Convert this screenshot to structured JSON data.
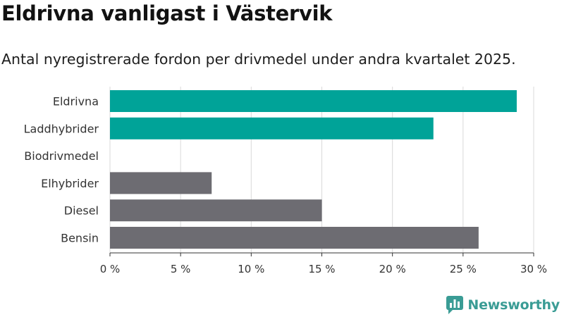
{
  "title": "Eldrivna vanligast i Västervik",
  "subtitle": "Antal nyregistrerade fordon per drivmedel under andra kvartalet 2025.",
  "logo_text": "Newsworthy",
  "colors": {
    "highlight": "#00a398",
    "default": "#6d6c72",
    "grid": "#d9d9d9",
    "axis": "#333333"
  },
  "chart_data": {
    "type": "bar",
    "orientation": "horizontal",
    "title": "Eldrivna vanligast i Västervik",
    "subtitle": "Antal nyregistrerade fordon per drivmedel under andra kvartalet 2025.",
    "categories": [
      "Eldrivna",
      "Laddhybrider",
      "Biodrivmedel",
      "Elhybrider",
      "Diesel",
      "Bensin"
    ],
    "values": [
      28.8,
      22.9,
      0,
      7.2,
      15.0,
      26.1
    ],
    "bar_colors": [
      "#00a398",
      "#00a398",
      "#00a398",
      "#6d6c72",
      "#6d6c72",
      "#6d6c72"
    ],
    "xlim": [
      0,
      30
    ],
    "x_ticks": [
      0,
      5,
      10,
      15,
      20,
      25,
      30
    ],
    "x_tick_labels": [
      "0 %",
      "5 %",
      "10 %",
      "15 %",
      "20 %",
      "25 %",
      "30 %"
    ],
    "xlabel": "",
    "ylabel": "",
    "grid": "vertical"
  }
}
